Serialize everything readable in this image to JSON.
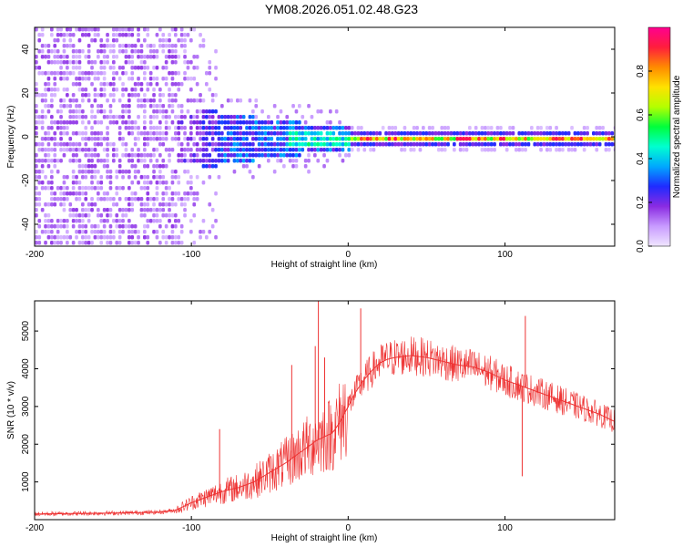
{
  "page": {
    "title": "YM08.2026.051.02.48.G23"
  },
  "colors": {
    "snr_line": "#ee3333",
    "colormap": [
      "#f0e6ff",
      "#c89bff",
      "#8a2be2",
      "#1f2bff",
      "#00a8ff",
      "#00ffd0",
      "#00ff3c",
      "#b4ff00",
      "#ffe100",
      "#ff8a00",
      "#ff1e3c",
      "#ff0090"
    ]
  },
  "chart_data": [
    {
      "type": "heatmap",
      "title": "YM08.2026.051.02.48.G23",
      "xlabel": "Height of straight line (km)",
      "ylabel": "Frequency (Hz)",
      "xlim": [
        -200,
        170
      ],
      "ylim": [
        -50,
        50
      ],
      "xticks": [
        -200,
        -100,
        0,
        100
      ],
      "xtick_labels": [
        "-200",
        "-100",
        "0",
        "100"
      ],
      "yticks": [
        -40,
        -20,
        0,
        20,
        40
      ],
      "ytick_labels": [
        "-40",
        "-20",
        "0",
        "20",
        "40"
      ],
      "colorbar": {
        "label": "Normalized spectral amplitude",
        "range": [
          0,
          1
        ],
        "ticks": [
          0,
          0.2,
          0.4,
          0.6,
          0.8
        ],
        "tick_labels": [
          "0.0",
          "0.2",
          "0.4",
          "0.6",
          "0.8"
        ]
      },
      "regions": [
        {
          "x": [
            -200,
            -110
          ],
          "freq_spread": 50,
          "amplitude": 0.1,
          "description": "noise"
        },
        {
          "x": [
            -110,
            -85
          ],
          "freq_spread": 20,
          "amplitude": 0.12
        },
        {
          "x": [
            -85,
            0
          ],
          "freq_spread": 12,
          "amplitude": 0.3
        },
        {
          "x": [
            0,
            170
          ],
          "freq_spread": 2,
          "amplitude": 0.9
        }
      ]
    },
    {
      "type": "line",
      "xlabel": "Height of straight line (km)",
      "ylabel": "SNR (10 * v/v)",
      "xlim": [
        -200,
        170
      ],
      "ylim": [
        0,
        5800
      ],
      "xticks": [
        -200,
        -100,
        0,
        100
      ],
      "xtick_labels": [
        "-200",
        "-100",
        "0",
        "100"
      ],
      "yticks": [
        1000,
        2000,
        3000,
        4000,
        5000
      ],
      "ytick_labels": [
        "1000",
        "2000",
        "3000",
        "4000",
        "5000"
      ],
      "series": [
        {
          "name": "SNR",
          "x": [
            -200,
            -180,
            -160,
            -140,
            -120,
            -110,
            -100,
            -90,
            -80,
            -70,
            -60,
            -50,
            -40,
            -30,
            -20,
            -15,
            -10,
            -5,
            0,
            5,
            10,
            15,
            20,
            25,
            30,
            40,
            50,
            60,
            70,
            80,
            90,
            100,
            110,
            120,
            130,
            140,
            150,
            160,
            170
          ],
          "y": [
            150,
            160,
            170,
            180,
            200,
            250,
            450,
            600,
            750,
            850,
            1000,
            1250,
            1500,
            1800,
            2100,
            2200,
            2300,
            2600,
            3000,
            3400,
            3700,
            3950,
            4150,
            4250,
            4300,
            4350,
            4300,
            4200,
            4100,
            4050,
            3900,
            3700,
            3550,
            3400,
            3250,
            3100,
            2950,
            2800,
            2600
          ],
          "spikes": [
            {
              "x": -82,
              "y": 2400
            },
            {
              "x": -36,
              "y": 4100
            },
            {
              "x": -21,
              "y": 4600
            },
            {
              "x": -19,
              "y": 5800
            },
            {
              "x": -15,
              "y": 4300
            },
            {
              "x": 8,
              "y": 5600
            },
            {
              "x": 113,
              "y": 5400
            },
            {
              "x": 111,
              "y": 1150
            }
          ]
        }
      ]
    }
  ]
}
